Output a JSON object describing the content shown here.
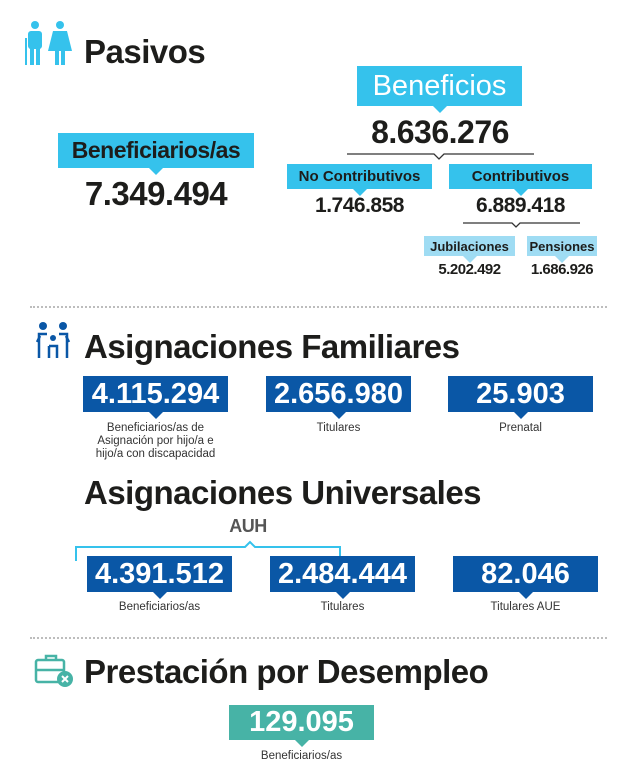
{
  "colors": {
    "light_blue": "#35c2ec",
    "pale_blue": "#9fdcf3",
    "dark_blue": "#0a57a6",
    "teal": "#47b3a6",
    "text": "#1d1d1b"
  },
  "pasivos": {
    "title": "Pasivos",
    "icon": "elderly-couple-icon",
    "beneficiarios_label": "Beneficiarios/as",
    "beneficiarios_value": "7.349.494",
    "beneficios_label": "Beneficios",
    "beneficios_value": "8.636.276",
    "no_contributivos_label": "No Contributivos",
    "no_contributivos_value": "1.746.858",
    "contributivos_label": "Contributivos",
    "contributivos_value": "6.889.418",
    "jubilaciones_label": "Jubilaciones",
    "jubilaciones_value": "5.202.492",
    "pensiones_label": "Pensiones",
    "pensiones_value": "1.686.926"
  },
  "familiares": {
    "title": "Asignaciones Familiares",
    "icon": "family-icon",
    "items": [
      {
        "value": "4.115.294",
        "label": "Beneficiarios/as de Asignación por hijo/a e hijo/a con discapacidad"
      },
      {
        "value": "2.656.980",
        "label": "Titulares"
      },
      {
        "value": "25.903",
        "label": "Prenatal"
      }
    ]
  },
  "universales": {
    "title": "Asignaciones Universales",
    "group_label": "AUH",
    "items": [
      {
        "value": "4.391.512",
        "label": "Beneficiarios/as"
      },
      {
        "value": "2.484.444",
        "label": "Titulares"
      },
      {
        "value": "82.046",
        "label": "Titulares AUE"
      }
    ]
  },
  "desempleo": {
    "title": "Prestación por Desempleo",
    "icon": "briefcase-x-icon",
    "value": "129.095",
    "label": "Beneficiarios/as"
  }
}
